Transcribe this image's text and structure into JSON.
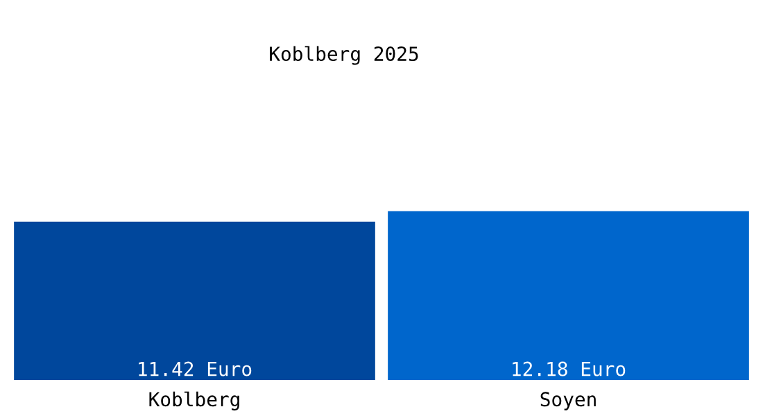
{
  "chart_data": {
    "type": "bar",
    "title": "Koblberg 2025",
    "categories": [
      "Koblberg",
      "Soyen"
    ],
    "values": [
      11.42,
      12.18
    ],
    "colors": [
      "#00479c",
      "#0066cc"
    ],
    "value_labels": [
      "11.42 Euro",
      "12.18 Euro"
    ]
  }
}
